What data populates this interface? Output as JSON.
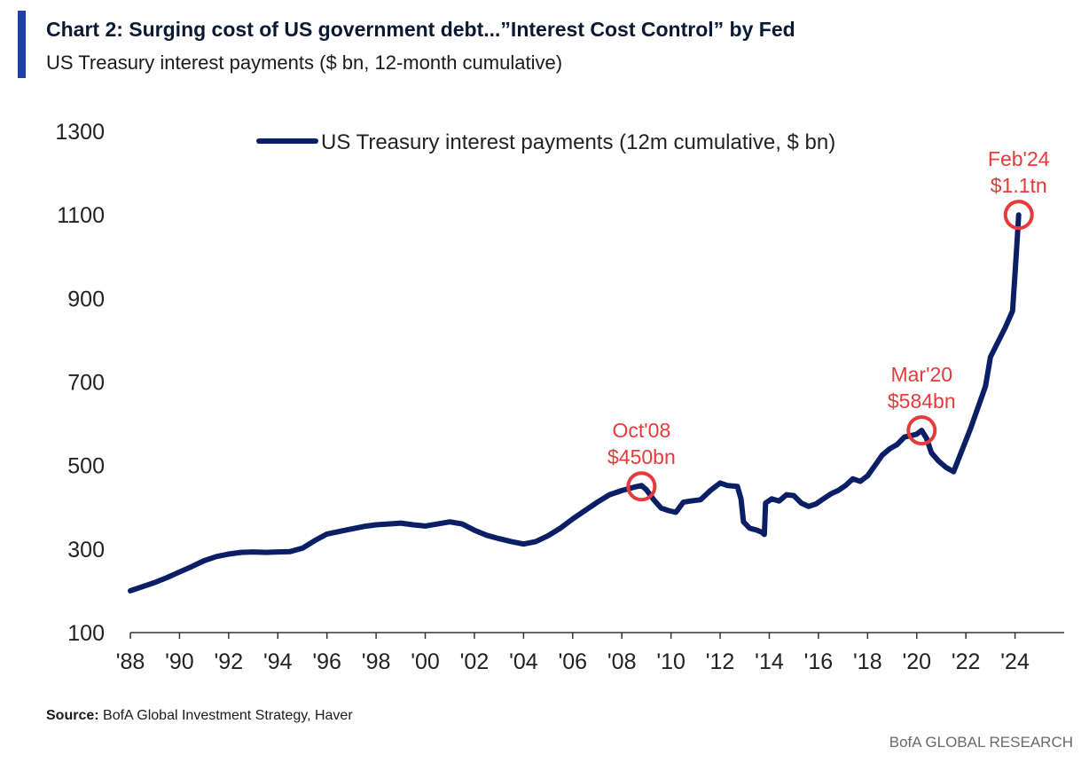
{
  "header": {
    "title": "Chart 2: Surging cost of US government debt...”Interest Cost Control” by Fed",
    "subtitle": "US Treasury interest payments ($ bn, 12-month cumulative)"
  },
  "footer": {
    "source_label": "Source:",
    "source_text": "BofA Global Investment Strategy, Haver",
    "brand": "BofA GLOBAL RESEARCH"
  },
  "colors": {
    "accent": "#1f3ea8",
    "line": "#0a1f66",
    "highlight": "#e83a3a",
    "axis": "#333333"
  },
  "chart_data": {
    "type": "line",
    "title": "",
    "xlabel": "",
    "ylabel": "",
    "ylim": [
      100,
      1300
    ],
    "yticks": [
      100,
      300,
      500,
      700,
      900,
      1100,
      1300
    ],
    "xlim": [
      1988,
      2026
    ],
    "xticks": [
      {
        "value": 1988,
        "label": "'88"
      },
      {
        "value": 1990,
        "label": "'90"
      },
      {
        "value": 1992,
        "label": "'92"
      },
      {
        "value": 1994,
        "label": "'94"
      },
      {
        "value": 1996,
        "label": "'96"
      },
      {
        "value": 1998,
        "label": "'98"
      },
      {
        "value": 2000,
        "label": "'00"
      },
      {
        "value": 2002,
        "label": "'02"
      },
      {
        "value": 2004,
        "label": "'04"
      },
      {
        "value": 2006,
        "label": "'06"
      },
      {
        "value": 2008,
        "label": "'08"
      },
      {
        "value": 2010,
        "label": "'10"
      },
      {
        "value": 2012,
        "label": "'12"
      },
      {
        "value": 2014,
        "label": "'14"
      },
      {
        "value": 2016,
        "label": "'16"
      },
      {
        "value": 2018,
        "label": "'18"
      },
      {
        "value": 2020,
        "label": "'20"
      },
      {
        "value": 2022,
        "label": "'22"
      },
      {
        "value": 2024,
        "label": "'24"
      }
    ],
    "grid": false,
    "legend": "top-center",
    "series": [
      {
        "name": "US Treasury interest payments (12m cumulative, $ bn)",
        "x": [
          1988.0,
          1988.5,
          1989.0,
          1989.5,
          1990.0,
          1990.5,
          1991.0,
          1991.5,
          1992.0,
          1992.5,
          1993.0,
          1993.5,
          1994.0,
          1994.5,
          1995.0,
          1995.5,
          1996.0,
          1996.5,
          1997.0,
          1997.5,
          1998.0,
          1998.5,
          1999.0,
          1999.5,
          2000.0,
          2000.5,
          2001.0,
          2001.5,
          2002.0,
          2002.5,
          2003.0,
          2003.5,
          2004.0,
          2004.5,
          2005.0,
          2005.5,
          2006.0,
          2006.5,
          2007.0,
          2007.5,
          2008.0,
          2008.5,
          2008.8,
          2009.0,
          2009.3,
          2009.6,
          2009.9,
          2010.2,
          2010.5,
          2010.8,
          2011.2,
          2011.6,
          2012.0,
          2012.3,
          2012.7,
          2012.85,
          2012.95,
          2013.2,
          2013.5,
          2013.7,
          2013.8,
          2013.85,
          2014.1,
          2014.4,
          2014.7,
          2015.0,
          2015.3,
          2015.6,
          2015.9,
          2016.2,
          2016.5,
          2016.8,
          2017.1,
          2017.4,
          2017.7,
          2018.0,
          2018.3,
          2018.6,
          2018.9,
          2019.2,
          2019.5,
          2019.8,
          2020.0,
          2020.2,
          2020.4,
          2020.6,
          2020.9,
          2021.2,
          2021.5,
          2021.8,
          2022.0,
          2022.2,
          2022.5,
          2022.8,
          2023.0,
          2023.3,
          2023.6,
          2023.9,
          2024.0,
          2024.1,
          2024.15
        ],
        "values": [
          200,
          210,
          220,
          232,
          245,
          258,
          272,
          282,
          288,
          292,
          293,
          292,
          293,
          294,
          302,
          320,
          336,
          342,
          348,
          354,
          358,
          360,
          362,
          358,
          355,
          360,
          365,
          360,
          345,
          333,
          325,
          318,
          312,
          318,
          332,
          350,
          372,
          392,
          412,
          430,
          440,
          448,
          452,
          442,
          418,
          398,
          392,
          388,
          412,
          415,
          418,
          440,
          458,
          452,
          450,
          420,
          365,
          350,
          345,
          340,
          335,
          410,
          420,
          415,
          430,
          428,
          410,
          402,
          408,
          420,
          432,
          440,
          452,
          468,
          462,
          475,
          500,
          525,
          540,
          550,
          568,
          572,
          575,
          584,
          565,
          530,
          510,
          495,
          485,
          530,
          560,
          590,
          640,
          690,
          760,
          795,
          830,
          870,
          960,
          1050,
          1100
        ]
      }
    ],
    "annotations": [
      {
        "x": 2008.8,
        "y": 450,
        "line1": "Oct'08",
        "line2": "$450bn"
      },
      {
        "x": 2020.2,
        "y": 584,
        "line1": "Mar'20",
        "line2": "$584bn"
      },
      {
        "x": 2024.15,
        "y": 1100,
        "line1": "Feb'24",
        "line2": "$1.1tn"
      }
    ]
  }
}
